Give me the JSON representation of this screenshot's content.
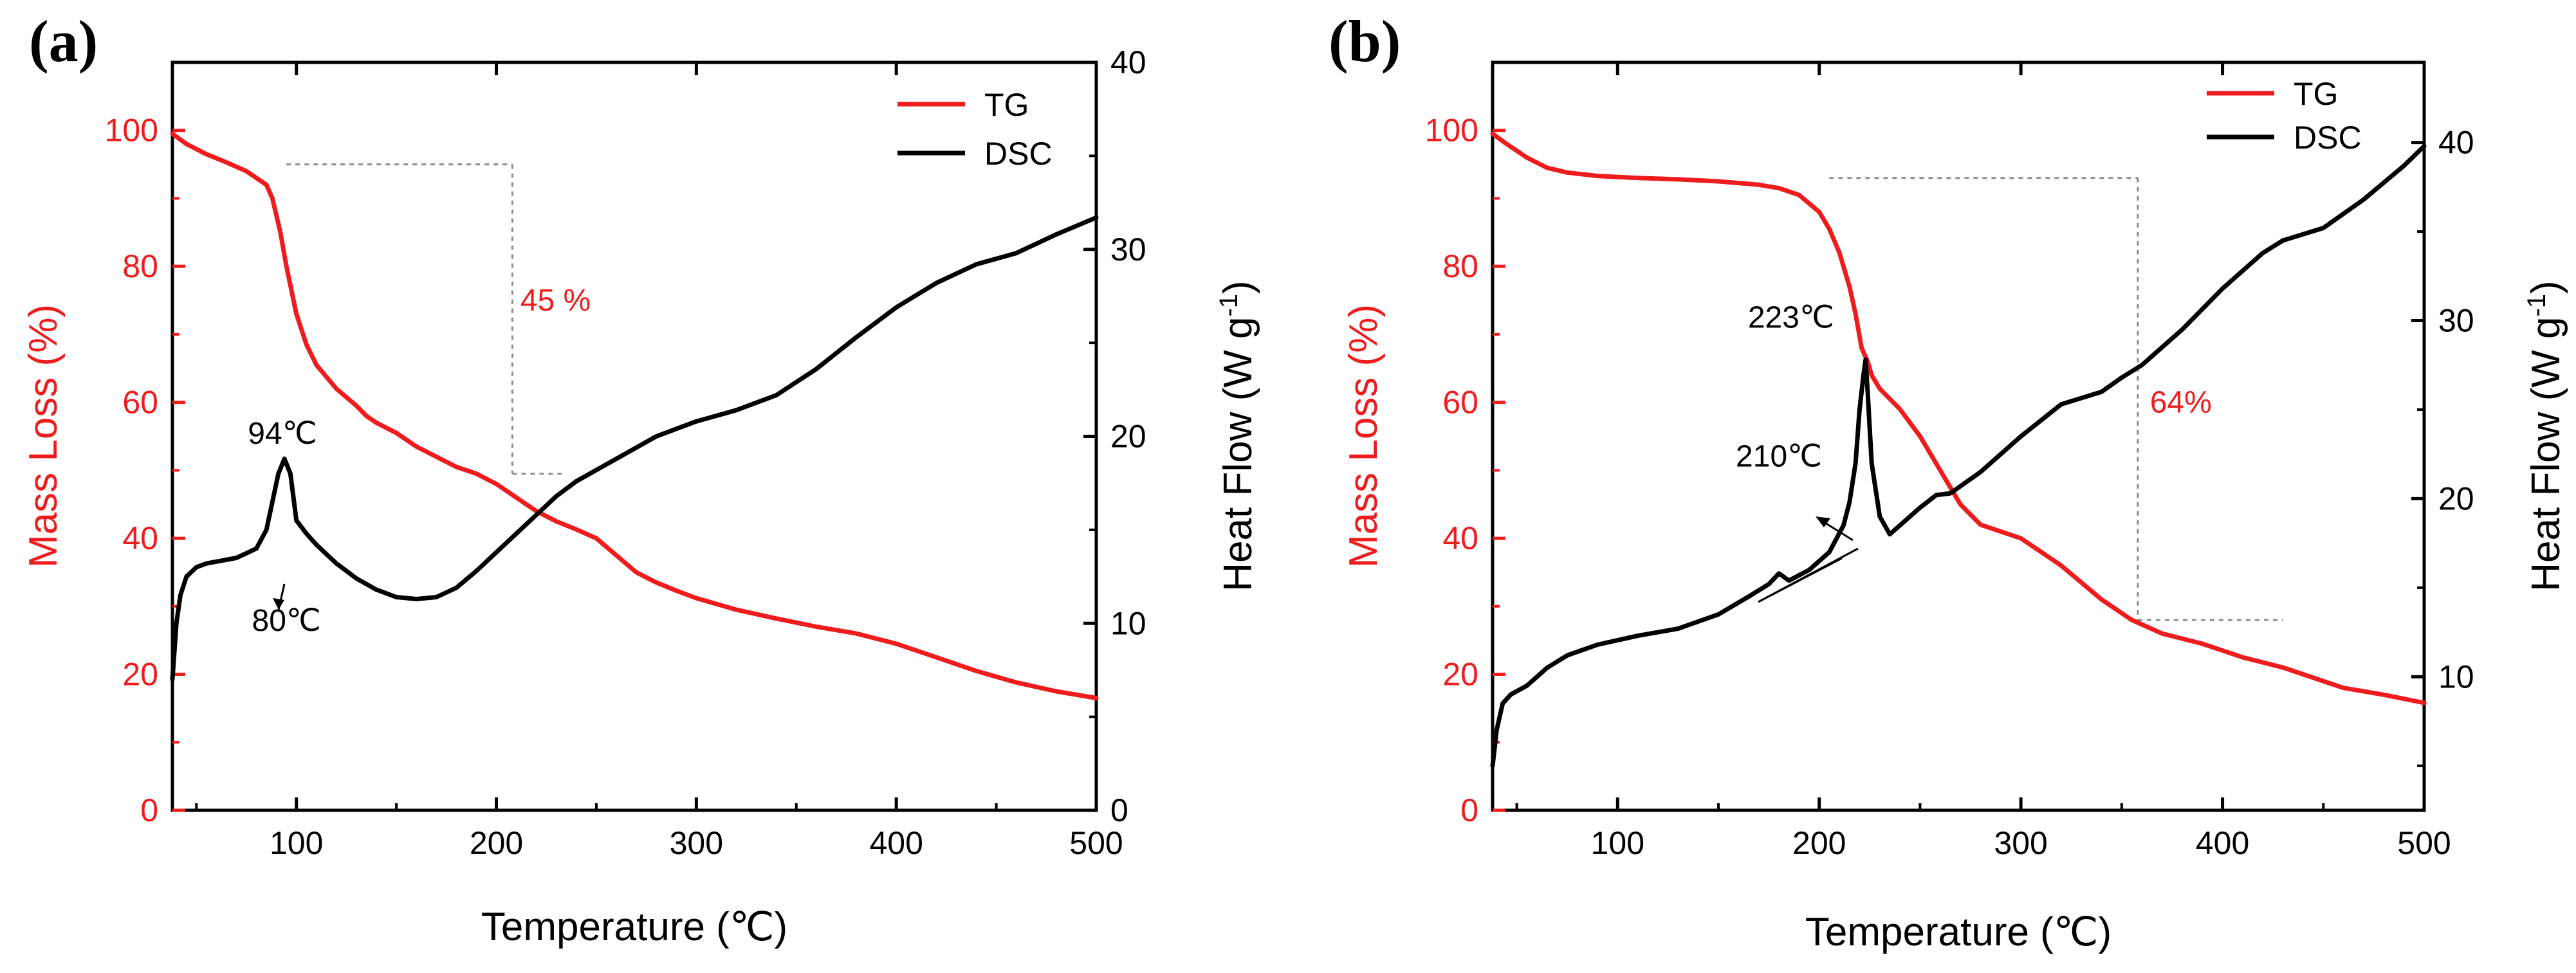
{
  "colors": {
    "tg": "#ee1c1c",
    "dsc": "#000000",
    "guide": "#8c8c8c",
    "axis": "#000000"
  },
  "chart_data": [
    {
      "panel_label": "(a)",
      "type": "line",
      "xlabel": "Temperature (℃)",
      "ylabel_left": "Mass Loss (%)",
      "ylabel_right": "Heat Flow (W g-1)",
      "ylabel_right_main": "Heat Flow (W g",
      "ylabel_right_sup": "-1",
      "ylabel_right_close": ")",
      "xlim": [
        38,
        500
      ],
      "ylim_left": [
        0,
        110
      ],
      "ylim_right": [
        0,
        40
      ],
      "xticks": [
        100,
        200,
        300,
        400,
        500
      ],
      "xtick_labels": [
        "100",
        "200",
        "300",
        "400",
        "500"
      ],
      "yticks_left": [
        0,
        20,
        40,
        60,
        80,
        100
      ],
      "ytick_labels_left": [
        "0",
        "20",
        "40",
        "60",
        "80",
        "100"
      ],
      "yticks_right": [
        0,
        10,
        20,
        30,
        40
      ],
      "ytick_labels_right": [
        "0",
        "10",
        "20",
        "30",
        "40"
      ],
      "legend": [
        "TG",
        "DSC"
      ],
      "series": [
        {
          "name": "TG",
          "axis": "left",
          "x": [
            38,
            45,
            55,
            65,
            75,
            85,
            88,
            92,
            95,
            100,
            105,
            110,
            120,
            130,
            135,
            140,
            150,
            160,
            170,
            180,
            190,
            200,
            210,
            220,
            230,
            240,
            250,
            260,
            270,
            280,
            290,
            300,
            320,
            340,
            360,
            380,
            400,
            420,
            440,
            460,
            480,
            500
          ],
          "y": [
            99.5,
            98,
            96.5,
            95.3,
            94,
            92,
            90,
            85,
            80,
            73,
            68.5,
            65.5,
            62,
            59.5,
            58,
            57,
            55.5,
            53.5,
            52,
            50.5,
            49.5,
            48,
            46,
            44,
            42.5,
            41.3,
            40,
            37.5,
            35,
            33.5,
            32.3,
            31.2,
            29.5,
            28.2,
            27,
            26,
            24.5,
            22.5,
            20.5,
            18.8,
            17.5,
            16.5
          ]
        },
        {
          "name": "DSC",
          "axis": "right",
          "x": [
            38,
            40,
            42,
            45,
            50,
            55,
            60,
            70,
            80,
            85,
            88,
            91,
            94,
            97,
            100,
            105,
            110,
            120,
            130,
            140,
            150,
            160,
            170,
            180,
            190,
            200,
            210,
            220,
            230,
            240,
            260,
            280,
            300,
            320,
            340,
            360,
            380,
            400,
            420,
            440,
            460,
            480,
            500
          ],
          "y": [
            7,
            10,
            11.5,
            12.5,
            13,
            13.2,
            13.3,
            13.5,
            14,
            15,
            16.5,
            18,
            18.8,
            18,
            15.5,
            14.8,
            14.2,
            13.2,
            12.4,
            11.8,
            11.4,
            11.3,
            11.4,
            11.9,
            12.8,
            13.8,
            14.8,
            15.8,
            16.8,
            17.6,
            18.8,
            20,
            20.8,
            21.4,
            22.2,
            23.6,
            25.3,
            26.9,
            28.2,
            29.2,
            29.8,
            30.8,
            31.7
          ]
        }
      ],
      "annotations": [
        {
          "text": "94℃",
          "x": 93,
          "y_right": 19.6
        },
        {
          "text": "80℃",
          "x": 95,
          "y_right": 9.6
        },
        {
          "text": "45 %",
          "x": 212,
          "y_left": 73.5
        }
      ]
    },
    {
      "panel_label": "(b)",
      "type": "line",
      "xlabel": "Temperature (℃)",
      "ylabel_left": "Mass Loss (%)",
      "ylabel_right": "Heat Flow (W g-1)",
      "ylabel_right_main": "Heat Flow (W g",
      "ylabel_right_sup": "-1",
      "ylabel_right_close": ")",
      "xlim": [
        38,
        500
      ],
      "ylim_left": [
        0,
        110
      ],
      "ylim_right": [
        2.5,
        44.5
      ],
      "xticks": [
        100,
        200,
        300,
        400,
        500
      ],
      "xtick_labels": [
        "100",
        "200",
        "300",
        "400",
        "500"
      ],
      "yticks_left": [
        0,
        20,
        40,
        60,
        80,
        100
      ],
      "ytick_labels_left": [
        "0",
        "20",
        "40",
        "60",
        "80",
        "100"
      ],
      "yticks_right": [
        10,
        20,
        30,
        40
      ],
      "ytick_labels_right": [
        "10",
        "20",
        "30",
        "40"
      ],
      "legend": [
        "TG",
        "DSC"
      ],
      "series": [
        {
          "name": "TG",
          "axis": "left",
          "x": [
            38,
            45,
            55,
            65,
            75,
            90,
            110,
            130,
            150,
            170,
            180,
            190,
            200,
            205,
            210,
            215,
            218,
            221,
            224,
            226,
            230,
            240,
            250,
            260,
            270,
            280,
            300,
            320,
            340,
            355,
            370,
            390,
            410,
            430,
            460,
            480,
            500
          ],
          "y": [
            99.5,
            98,
            96,
            94.5,
            93.8,
            93.3,
            93,
            92.8,
            92.5,
            92,
            91.5,
            90.5,
            88,
            85.5,
            82,
            77,
            73,
            68,
            66,
            64,
            62,
            59,
            55,
            50,
            45,
            42,
            40,
            36,
            31,
            28,
            26,
            24.5,
            22.5,
            21,
            18,
            17,
            15.8
          ]
        },
        {
          "name": "DSC",
          "axis": "right",
          "x": [
            38,
            40,
            43,
            47,
            55,
            65,
            75,
            90,
            110,
            130,
            150,
            165,
            175,
            180,
            185,
            195,
            205,
            212,
            215,
            218,
            220,
            222,
            223,
            224,
            226,
            230,
            235,
            240,
            250,
            258,
            265,
            280,
            300,
            320,
            340,
            350,
            360,
            380,
            400,
            420,
            430,
            450,
            470,
            490,
            500
          ],
          "y": [
            5,
            7,
            8.5,
            9,
            9.5,
            10.5,
            11.2,
            11.8,
            12.3,
            12.7,
            13.5,
            14.5,
            15.2,
            15.8,
            15.4,
            16,
            17,
            18.5,
            19.8,
            22,
            25,
            27,
            27.8,
            26,
            22,
            19,
            18,
            18.5,
            19.5,
            20.2,
            20.3,
            21.5,
            23.5,
            25.3,
            26,
            26.8,
            27.5,
            29.5,
            31.8,
            33.8,
            34.5,
            35.2,
            36.8,
            38.7,
            39.8
          ]
        }
      ],
      "annotations": [
        {
          "text": "223℃",
          "x": 186,
          "y_right": 29.6
        },
        {
          "text": "210℃",
          "x": 180,
          "y_right": 21.8
        },
        {
          "text": "64%",
          "x": 364,
          "y_left": 58.5
        }
      ]
    }
  ]
}
